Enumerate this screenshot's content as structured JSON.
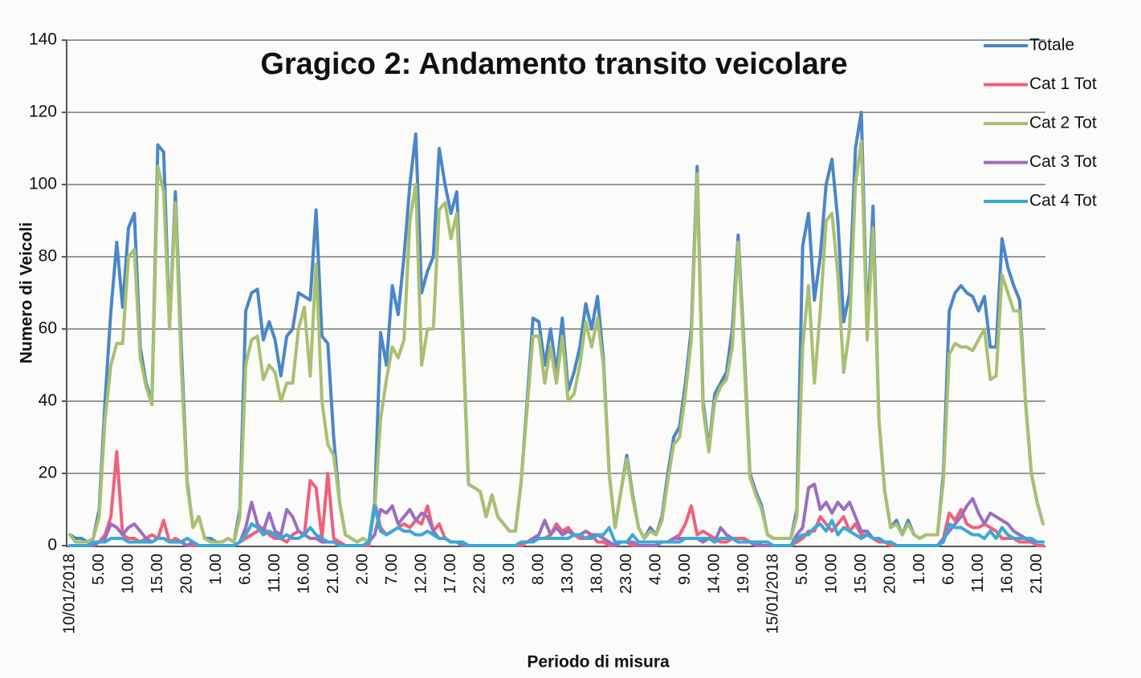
{
  "chart_data": {
    "type": "line",
    "title": "Gragico 2:  Andamento transito veicolare",
    "x_label": "Periodo di misura",
    "y_label": "Numero di Veicoli",
    "ylim": [
      0,
      140
    ],
    "yticks": [
      0,
      20,
      40,
      60,
      80,
      100,
      120,
      140
    ],
    "grid": true,
    "legend": "right",
    "categories": [
      "10/01/2018",
      null,
      null,
      null,
      null,
      "5.00",
      null,
      null,
      null,
      null,
      "10.00",
      null,
      null,
      null,
      null,
      "15.00",
      null,
      null,
      null,
      null,
      "20.00",
      null,
      null,
      null,
      null,
      "1.00",
      null,
      null,
      null,
      null,
      "6.00",
      null,
      null,
      null,
      null,
      "11.00",
      null,
      null,
      null,
      null,
      "16.00",
      null,
      null,
      null,
      null,
      "21.00",
      null,
      null,
      null,
      null,
      "2.00",
      null,
      null,
      null,
      null,
      "7.00",
      null,
      null,
      null,
      null,
      "12.00",
      null,
      null,
      null,
      null,
      "17.00",
      null,
      null,
      null,
      null,
      "22.00",
      null,
      null,
      null,
      null,
      "3.00",
      null,
      null,
      null,
      null,
      "8.00",
      null,
      null,
      null,
      null,
      "13.00",
      null,
      null,
      null,
      null,
      "18.00",
      null,
      null,
      null,
      null,
      "23.00",
      null,
      null,
      null,
      null,
      "4.00",
      null,
      null,
      null,
      null,
      "9.00",
      null,
      null,
      null,
      null,
      "14.00",
      null,
      null,
      null,
      null,
      "19.00",
      null,
      null,
      null,
      null,
      "15/01/2018",
      null,
      null,
      null,
      null,
      "5.00",
      null,
      null,
      null,
      null,
      "10.00",
      null,
      null,
      null,
      null,
      "15.00",
      null,
      null,
      null,
      null,
      "20.00",
      null,
      null,
      null,
      null,
      "1.00",
      null,
      null,
      null,
      null,
      "6.00",
      null,
      null,
      null,
      null,
      "11.00",
      null,
      null,
      null,
      null,
      "16.00",
      null,
      null,
      null,
      null,
      "21.00",
      null
    ],
    "series": [
      {
        "name": "Totale",
        "color": "#4a86c8",
        "values": [
          3,
          2,
          2,
          1,
          2,
          10,
          40,
          65,
          84,
          66,
          88,
          92,
          55,
          45,
          40,
          111,
          109,
          60,
          98,
          55,
          18,
          5,
          8,
          2,
          2,
          1,
          1,
          2,
          1,
          10,
          65,
          70,
          71,
          57,
          62,
          57,
          47,
          58,
          60,
          70,
          69,
          68,
          93,
          58,
          56,
          30,
          12,
          3,
          2,
          1,
          2,
          1,
          12,
          59,
          50,
          72,
          64,
          80,
          100,
          114,
          70,
          76,
          80,
          110,
          100,
          92,
          98,
          60,
          17,
          16,
          15,
          8,
          14,
          8,
          6,
          4,
          4,
          18,
          40,
          63,
          62,
          50,
          60,
          48,
          63,
          43,
          48,
          55,
          67,
          60,
          69,
          52,
          20,
          5,
          15,
          25,
          14,
          5,
          2,
          5,
          3,
          8,
          20,
          30,
          33,
          45,
          60,
          105,
          40,
          27,
          42,
          45,
          48,
          60,
          86,
          55,
          20,
          15,
          11,
          3,
          2,
          2,
          2,
          2,
          10,
          83,
          92,
          68,
          80,
          100,
          107,
          90,
          62,
          70,
          110,
          120,
          60,
          94,
          35,
          15,
          5,
          7,
          3,
          7,
          3,
          2,
          3,
          3,
          3,
          20,
          65,
          70,
          72,
          70,
          69,
          65,
          69,
          55,
          55,
          85,
          77,
          72,
          68,
          40,
          20,
          12,
          6
        ]
      },
      {
        "name": "Cat 1 Tot",
        "color": "#f0607a",
        "values": [
          0,
          0,
          0,
          0,
          0,
          1,
          3,
          8,
          26,
          3,
          2,
          2,
          1,
          2,
          3,
          2,
          7,
          1,
          2,
          1,
          0,
          0,
          0,
          0,
          0,
          0,
          0,
          0,
          0,
          1,
          2,
          3,
          4,
          5,
          3,
          2,
          2,
          1,
          3,
          4,
          3,
          18,
          16,
          2,
          20,
          2,
          1,
          0,
          0,
          0,
          0,
          0,
          12,
          5,
          3,
          4,
          5,
          6,
          5,
          7,
          6,
          11,
          4,
          6,
          2,
          1,
          1,
          0,
          0,
          0,
          0,
          0,
          0,
          0,
          0,
          0,
          0,
          0,
          1,
          1,
          2,
          2,
          3,
          6,
          4,
          5,
          3,
          2,
          2,
          3,
          1,
          1,
          0,
          0,
          1,
          1,
          0,
          0,
          0,
          0,
          0,
          1,
          1,
          2,
          3,
          6,
          11,
          3,
          4,
          3,
          2,
          1,
          1,
          2,
          2,
          2,
          1,
          1,
          0,
          0,
          0,
          0,
          0,
          0,
          1,
          2,
          4,
          4,
          8,
          6,
          4,
          6,
          8,
          4,
          6,
          3,
          3,
          2,
          1,
          1,
          0,
          0,
          0,
          0,
          0,
          0,
          0,
          0,
          0,
          2,
          9,
          7,
          10,
          6,
          5,
          5,
          6,
          5,
          4,
          2,
          2,
          2,
          1,
          1,
          1,
          0,
          0
        ]
      },
      {
        "name": "Cat 2 Tot",
        "color": "#a8c070",
        "values": [
          3,
          1,
          1,
          1,
          2,
          8,
          35,
          50,
          56,
          56,
          80,
          82,
          52,
          44,
          39,
          105,
          98,
          60,
          95,
          50,
          17,
          5,
          8,
          2,
          1,
          1,
          1,
          2,
          1,
          8,
          50,
          57,
          58,
          46,
          50,
          48,
          40,
          45,
          45,
          60,
          66,
          47,
          78,
          40,
          28,
          25,
          12,
          3,
          2,
          1,
          2,
          1,
          10,
          35,
          46,
          55,
          52,
          57,
          90,
          100,
          50,
          60,
          60,
          93,
          95,
          85,
          92,
          58,
          17,
          16,
          15,
          8,
          14,
          8,
          6,
          4,
          4,
          18,
          38,
          58,
          58,
          45,
          55,
          45,
          58,
          40,
          42,
          50,
          62,
          55,
          63,
          50,
          20,
          5,
          15,
          24,
          13,
          5,
          2,
          4,
          3,
          7,
          18,
          28,
          30,
          42,
          57,
          103,
          38,
          26,
          40,
          44,
          46,
          55,
          84,
          52,
          19,
          14,
          10,
          3,
          2,
          2,
          2,
          2,
          8,
          55,
          72,
          45,
          65,
          90,
          92,
          75,
          48,
          60,
          100,
          112,
          57,
          88,
          35,
          15,
          5,
          6,
          3,
          6,
          3,
          2,
          3,
          3,
          3,
          18,
          53,
          56,
          55,
          55,
          54,
          57,
          60,
          46,
          47,
          75,
          70,
          65,
          65,
          40,
          20,
          12,
          6
        ]
      },
      {
        "name": "Cat 3 Tot",
        "color": "#9b6ec0",
        "values": [
          0,
          0,
          0,
          0,
          0,
          1,
          2,
          6,
          5,
          3,
          5,
          6,
          4,
          2,
          1,
          2,
          2,
          1,
          1,
          1,
          0,
          1,
          0,
          0,
          0,
          0,
          0,
          0,
          0,
          1,
          5,
          12,
          6,
          4,
          9,
          4,
          3,
          10,
          8,
          4,
          3,
          2,
          2,
          1,
          1,
          1,
          0,
          0,
          0,
          0,
          0,
          1,
          3,
          10,
          9,
          11,
          6,
          8,
          10,
          7,
          9,
          8,
          4,
          2,
          2,
          1,
          1,
          0,
          0,
          0,
          0,
          0,
          0,
          0,
          0,
          0,
          0,
          1,
          1,
          2,
          3,
          7,
          3,
          5,
          3,
          4,
          3,
          3,
          4,
          3,
          3,
          2,
          1,
          0,
          1,
          1,
          1,
          0,
          0,
          0,
          0,
          1,
          1,
          2,
          2,
          2,
          2,
          2,
          1,
          2,
          1,
          5,
          3,
          2,
          1,
          1,
          1,
          0,
          0,
          0,
          0,
          0,
          0,
          0,
          3,
          5,
          16,
          17,
          10,
          12,
          9,
          12,
          10,
          12,
          8,
          4,
          4,
          2,
          2,
          1,
          1,
          0,
          0,
          0,
          0,
          0,
          0,
          0,
          0,
          2,
          4,
          6,
          8,
          11,
          13,
          9,
          6,
          9,
          8,
          7,
          6,
          4,
          3,
          2,
          1,
          1,
          1
        ]
      },
      {
        "name": "Cat 4 Tot",
        "color": "#3aa8d8",
        "values": [
          0,
          0,
          0,
          0,
          1,
          1,
          1,
          2,
          2,
          2,
          1,
          1,
          1,
          1,
          1,
          2,
          2,
          1,
          1,
          1,
          2,
          1,
          0,
          0,
          0,
          0,
          0,
          0,
          0,
          1,
          3,
          6,
          5,
          3,
          4,
          3,
          2,
          3,
          2,
          2,
          3,
          5,
          3,
          2,
          1,
          1,
          0,
          0,
          0,
          0,
          0,
          1,
          11,
          4,
          3,
          4,
          5,
          4,
          4,
          3,
          3,
          4,
          3,
          2,
          2,
          1,
          1,
          1,
          0,
          0,
          0,
          0,
          0,
          0,
          0,
          0,
          0,
          1,
          1,
          1,
          2,
          2,
          2,
          2,
          2,
          2,
          3,
          3,
          2,
          2,
          3,
          3,
          5,
          1,
          1,
          1,
          3,
          1,
          1,
          1,
          1,
          1,
          1,
          1,
          1,
          2,
          2,
          2,
          2,
          2,
          1,
          2,
          2,
          2,
          1,
          1,
          1,
          1,
          1,
          1,
          0,
          0,
          0,
          0,
          2,
          3,
          3,
          5,
          6,
          4,
          7,
          3,
          5,
          4,
          3,
          2,
          3,
          2,
          2,
          1,
          1,
          0,
          0,
          0,
          0,
          0,
          0,
          0,
          0,
          1,
          6,
          5,
          5,
          4,
          3,
          3,
          2,
          4,
          2,
          5,
          3,
          2,
          2,
          2,
          2,
          1,
          1
        ]
      }
    ]
  }
}
